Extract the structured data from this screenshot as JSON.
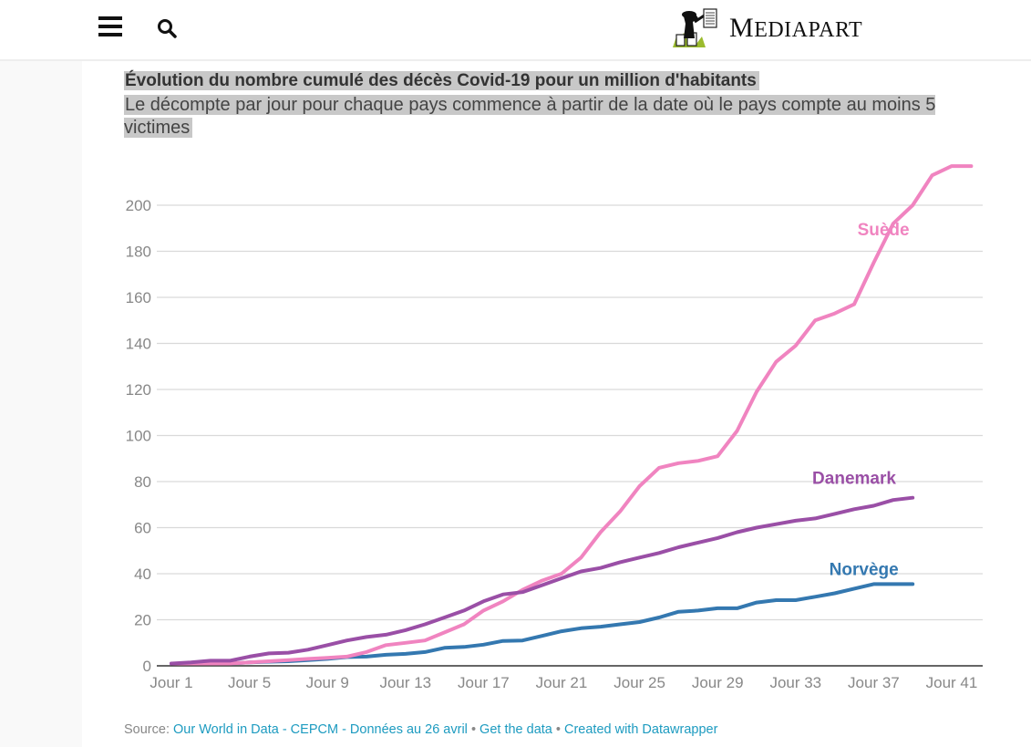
{
  "header": {
    "menu_icon": "hamburger-menu-icon",
    "search_icon": "search-icon",
    "logo_text_first": "M",
    "logo_text_rest": "EDIAPART"
  },
  "chart_title": "Évolution du nombre cumulé des décès Covid-19 pour un million d'habitants",
  "chart_subtitle": "Le décompte par jour pour chaque pays commence à partir de la date où le pays compte au moins 5 victimes",
  "footer": {
    "source_label": "Source:",
    "source_link": "Our World in Data - CEPCM - Données au 26 avril",
    "separator": "•",
    "get_data": "Get the data",
    "created_with": "Created with Datawrapper"
  },
  "chart_data": {
    "type": "line",
    "title": "Évolution du nombre cumulé des décès Covid-19 pour un million d'habitants",
    "subtitle": "Le décompte par jour pour chaque pays commence à partir de la date où le pays compte au moins 5 victimes",
    "xlabel": "",
    "ylabel": "",
    "x_range": [
      1,
      42
    ],
    "ylim": [
      0,
      200
    ],
    "y_ticks": [
      0,
      20,
      40,
      60,
      80,
      100,
      120,
      140,
      160,
      180,
      200
    ],
    "x_ticks": [
      {
        "day": 1,
        "label": "Jour 1"
      },
      {
        "day": 5,
        "label": "Jour 5"
      },
      {
        "day": 9,
        "label": "Jour 9"
      },
      {
        "day": 13,
        "label": "Jour 13"
      },
      {
        "day": 17,
        "label": "Jour 17"
      },
      {
        "day": 21,
        "label": "Jour 21"
      },
      {
        "day": 25,
        "label": "Jour 25"
      },
      {
        "day": 29,
        "label": "Jour 29"
      },
      {
        "day": 33,
        "label": "Jour 33"
      },
      {
        "day": 37,
        "label": "Jour 37"
      },
      {
        "day": 41,
        "label": "Jour 41"
      }
    ],
    "grid": true,
    "legend": "direct-labels",
    "series": [
      {
        "name": "Suède",
        "color": "#f084c0",
        "label_at": {
          "day": 37.5,
          "value": 187
        },
        "values": [
          1,
          1,
          1,
          1,
          1.5,
          2,
          2.5,
          3,
          3.5,
          4,
          6,
          9,
          10,
          11,
          14.5,
          18,
          24,
          28,
          33,
          37,
          40,
          47,
          58,
          67,
          78,
          86,
          88,
          89,
          91,
          102,
          119,
          132,
          139,
          150,
          153,
          157,
          175,
          192,
          200,
          213,
          217,
          217
        ]
      },
      {
        "name": "Danemark",
        "color": "#9a4fa6",
        "label_at": {
          "day": 36,
          "value": 79
        },
        "values": [
          1,
          1.5,
          2.2,
          2.2,
          4,
          5.4,
          5.7,
          7,
          9,
          11,
          12.5,
          13.5,
          15.5,
          18,
          21,
          24,
          28,
          31,
          32,
          35,
          38,
          41,
          42.5,
          45,
          47,
          49,
          51.5,
          53.5,
          55.5,
          58,
          60,
          61.5,
          63,
          64,
          66,
          68,
          69.5,
          72,
          73
        ]
      },
      {
        "name": "Norvège",
        "color": "#3478b0",
        "label_at": {
          "day": 36.5,
          "value": 39.5
        },
        "values": [
          1,
          1,
          1,
          1,
          1.5,
          1.8,
          2,
          2.5,
          3,
          3.8,
          4,
          4.8,
          5.2,
          6,
          7.8,
          8.2,
          9.2,
          10.8,
          11,
          13,
          15,
          16.3,
          17,
          18,
          19,
          21,
          23.5,
          24,
          25,
          25,
          27.5,
          28.5,
          28.5,
          30,
          31.5,
          33.5,
          35.5,
          35.5,
          35.5
        ]
      }
    ]
  }
}
